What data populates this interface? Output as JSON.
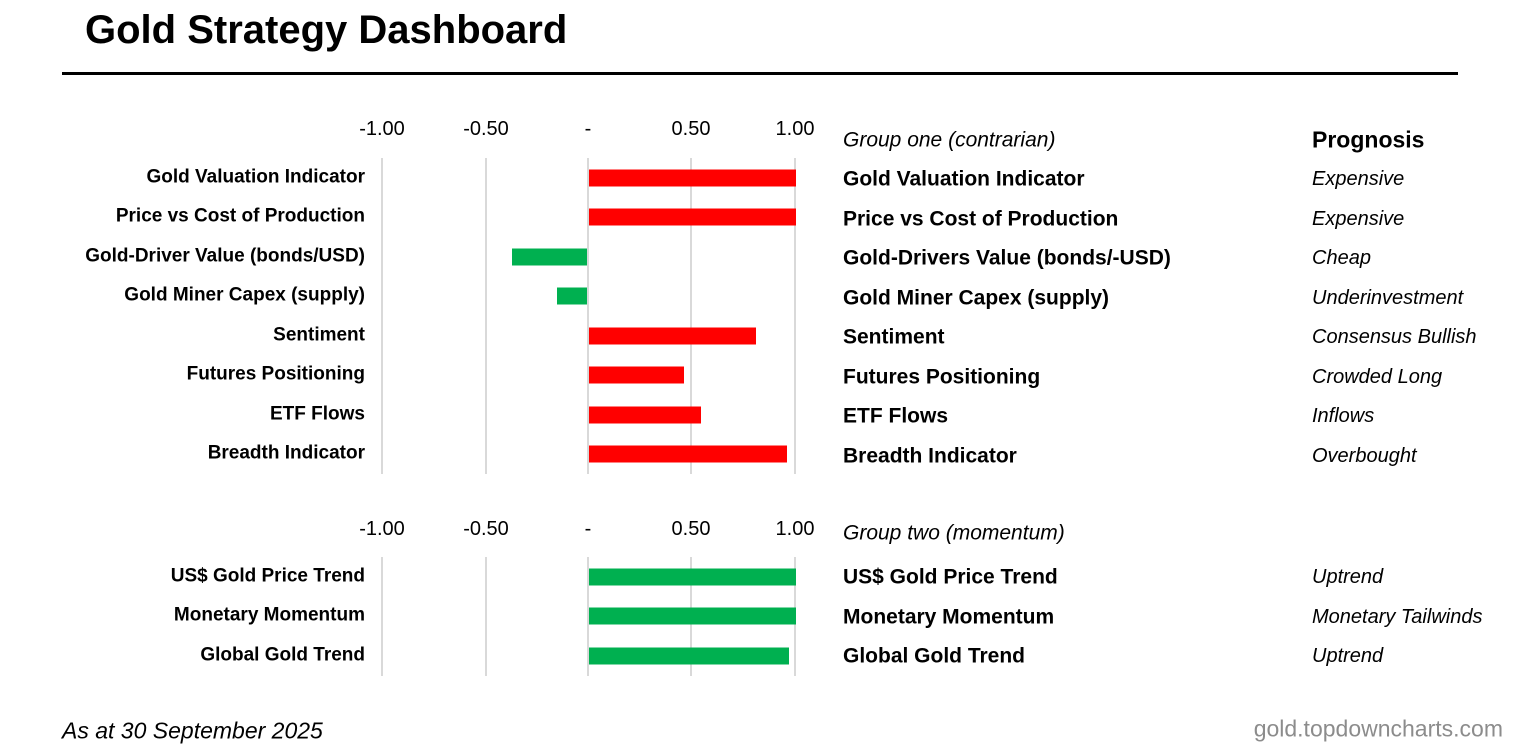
{
  "title": "Gold Strategy Dashboard",
  "prognosis_header": "Prognosis",
  "footer": {
    "as_at": "As at 30 September 2025",
    "site": "gold.topdowncharts.com"
  },
  "colors": {
    "red": "#FF0000",
    "green": "#00B050",
    "gridline": "#D9D9D9",
    "site_text": "#8C8C8C"
  },
  "chart_data": [
    {
      "type": "bar",
      "orientation": "horizontal",
      "group_label": "Group one (contrarian)",
      "axis_ticks": [
        "-1.00",
        "-0.50",
        "-",
        "0.50",
        "1.00"
      ],
      "axis_tick_values": [
        -1.0,
        -0.5,
        0,
        0.5,
        1.0
      ],
      "xlim": [
        -1.05,
        1.07
      ],
      "grid": true,
      "categories": [
        "Gold Valuation Indicator",
        "Price vs Cost of Production",
        "Gold-Driver Value (bonds/USD)",
        "Gold Miner Capex (supply)",
        "Sentiment",
        "Futures Positioning",
        "ETF Flows",
        "Breadth Indicator"
      ],
      "values": [
        1.0,
        1.0,
        -0.37,
        -0.15,
        0.81,
        0.46,
        0.54,
        0.96
      ],
      "bar_colors": [
        "#FF0000",
        "#FF0000",
        "#00B050",
        "#00B050",
        "#FF0000",
        "#FF0000",
        "#FF0000",
        "#FF0000"
      ],
      "table": {
        "rows": [
          {
            "indicator": "Gold Valuation Indicator",
            "prognosis": "Expensive"
          },
          {
            "indicator": "Price vs Cost of Production",
            "prognosis": "Expensive"
          },
          {
            "indicator": "Gold-Drivers Value (bonds/-USD)",
            "prognosis": "Cheap"
          },
          {
            "indicator": "Gold Miner Capex (supply)",
            "prognosis": "Underinvestment"
          },
          {
            "indicator": "Sentiment",
            "prognosis": "Consensus Bullish"
          },
          {
            "indicator": "Futures Positioning",
            "prognosis": "Crowded Long"
          },
          {
            "indicator": "ETF Flows",
            "prognosis": "Inflows"
          },
          {
            "indicator": "Breadth Indicator",
            "prognosis": "Overbought"
          }
        ]
      }
    },
    {
      "type": "bar",
      "orientation": "horizontal",
      "group_label": "Group two (momentum)",
      "axis_ticks": [
        "-1.00",
        "-0.50",
        "-",
        "0.50",
        "1.00"
      ],
      "axis_tick_values": [
        -1.0,
        -0.5,
        0,
        0.5,
        1.0
      ],
      "xlim": [
        -1.05,
        1.07
      ],
      "grid": true,
      "categories": [
        "US$ Gold Price Trend",
        "Monetary Momentum",
        "Global Gold Trend"
      ],
      "values": [
        1.0,
        1.0,
        0.97
      ],
      "bar_colors": [
        "#00B050",
        "#00B050",
        "#00B050"
      ],
      "table": {
        "rows": [
          {
            "indicator": "US$ Gold Price Trend",
            "prognosis": "Uptrend"
          },
          {
            "indicator": "Monetary Momentum",
            "prognosis": "Monetary Tailwinds"
          },
          {
            "indicator": "Global Gold Trend",
            "prognosis": "Uptrend"
          }
        ]
      }
    }
  ]
}
